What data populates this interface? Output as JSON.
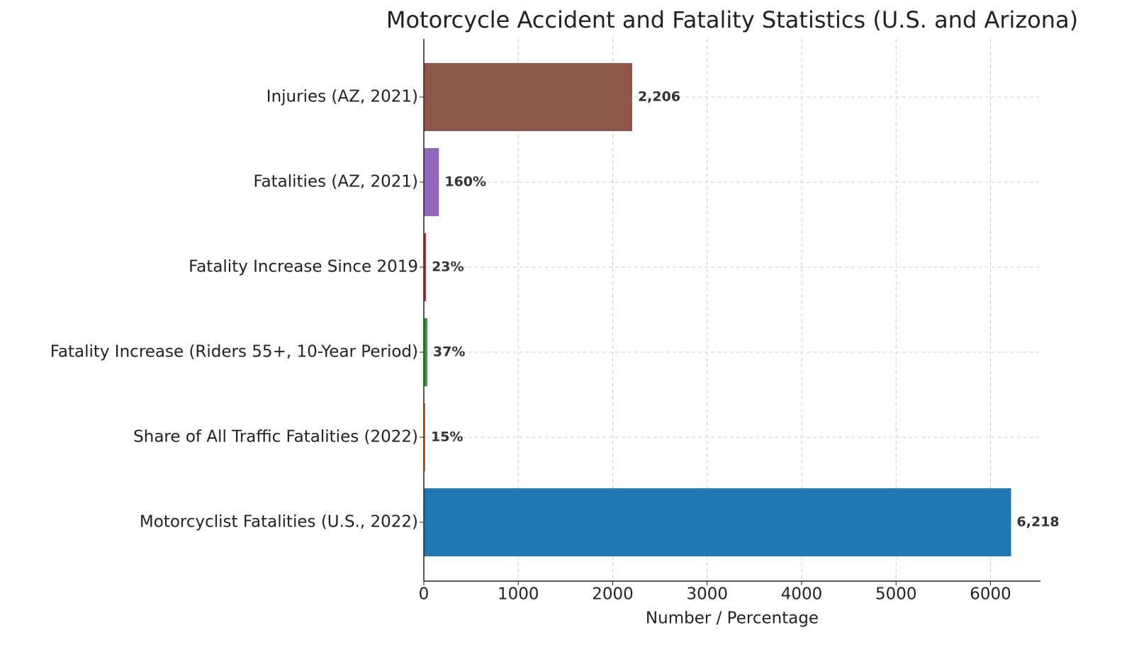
{
  "chart_data": {
    "type": "barh",
    "title": "Motorcycle Accident and Fatality Statistics (U.S. and Arizona)",
    "xlabel": "Number / Percentage",
    "categories": [
      "Motorcyclist Fatalities (U.S., 2022)",
      "Share of All Traffic Fatalities (2022)",
      "Fatality Increase (Riders 55+, 10-Year Period)",
      "Fatality Increase Since 2019",
      "Fatalities (AZ, 2021)",
      "Injuries (AZ, 2021)"
    ],
    "values": [
      6218,
      15,
      37,
      23,
      160,
      2206
    ],
    "value_labels": [
      "6,218",
      "15%",
      "37%",
      "23%",
      "160%",
      "2,206"
    ],
    "colors": [
      "#1f77b4",
      "#ff7f0e",
      "#2ca02c",
      "#d62728",
      "#9467bd",
      "#8c564b"
    ],
    "xlim": [
      0,
      6529
    ],
    "xticks": [
      0,
      1000,
      2000,
      3000,
      4000,
      5000,
      6000
    ],
    "grid": true
  }
}
